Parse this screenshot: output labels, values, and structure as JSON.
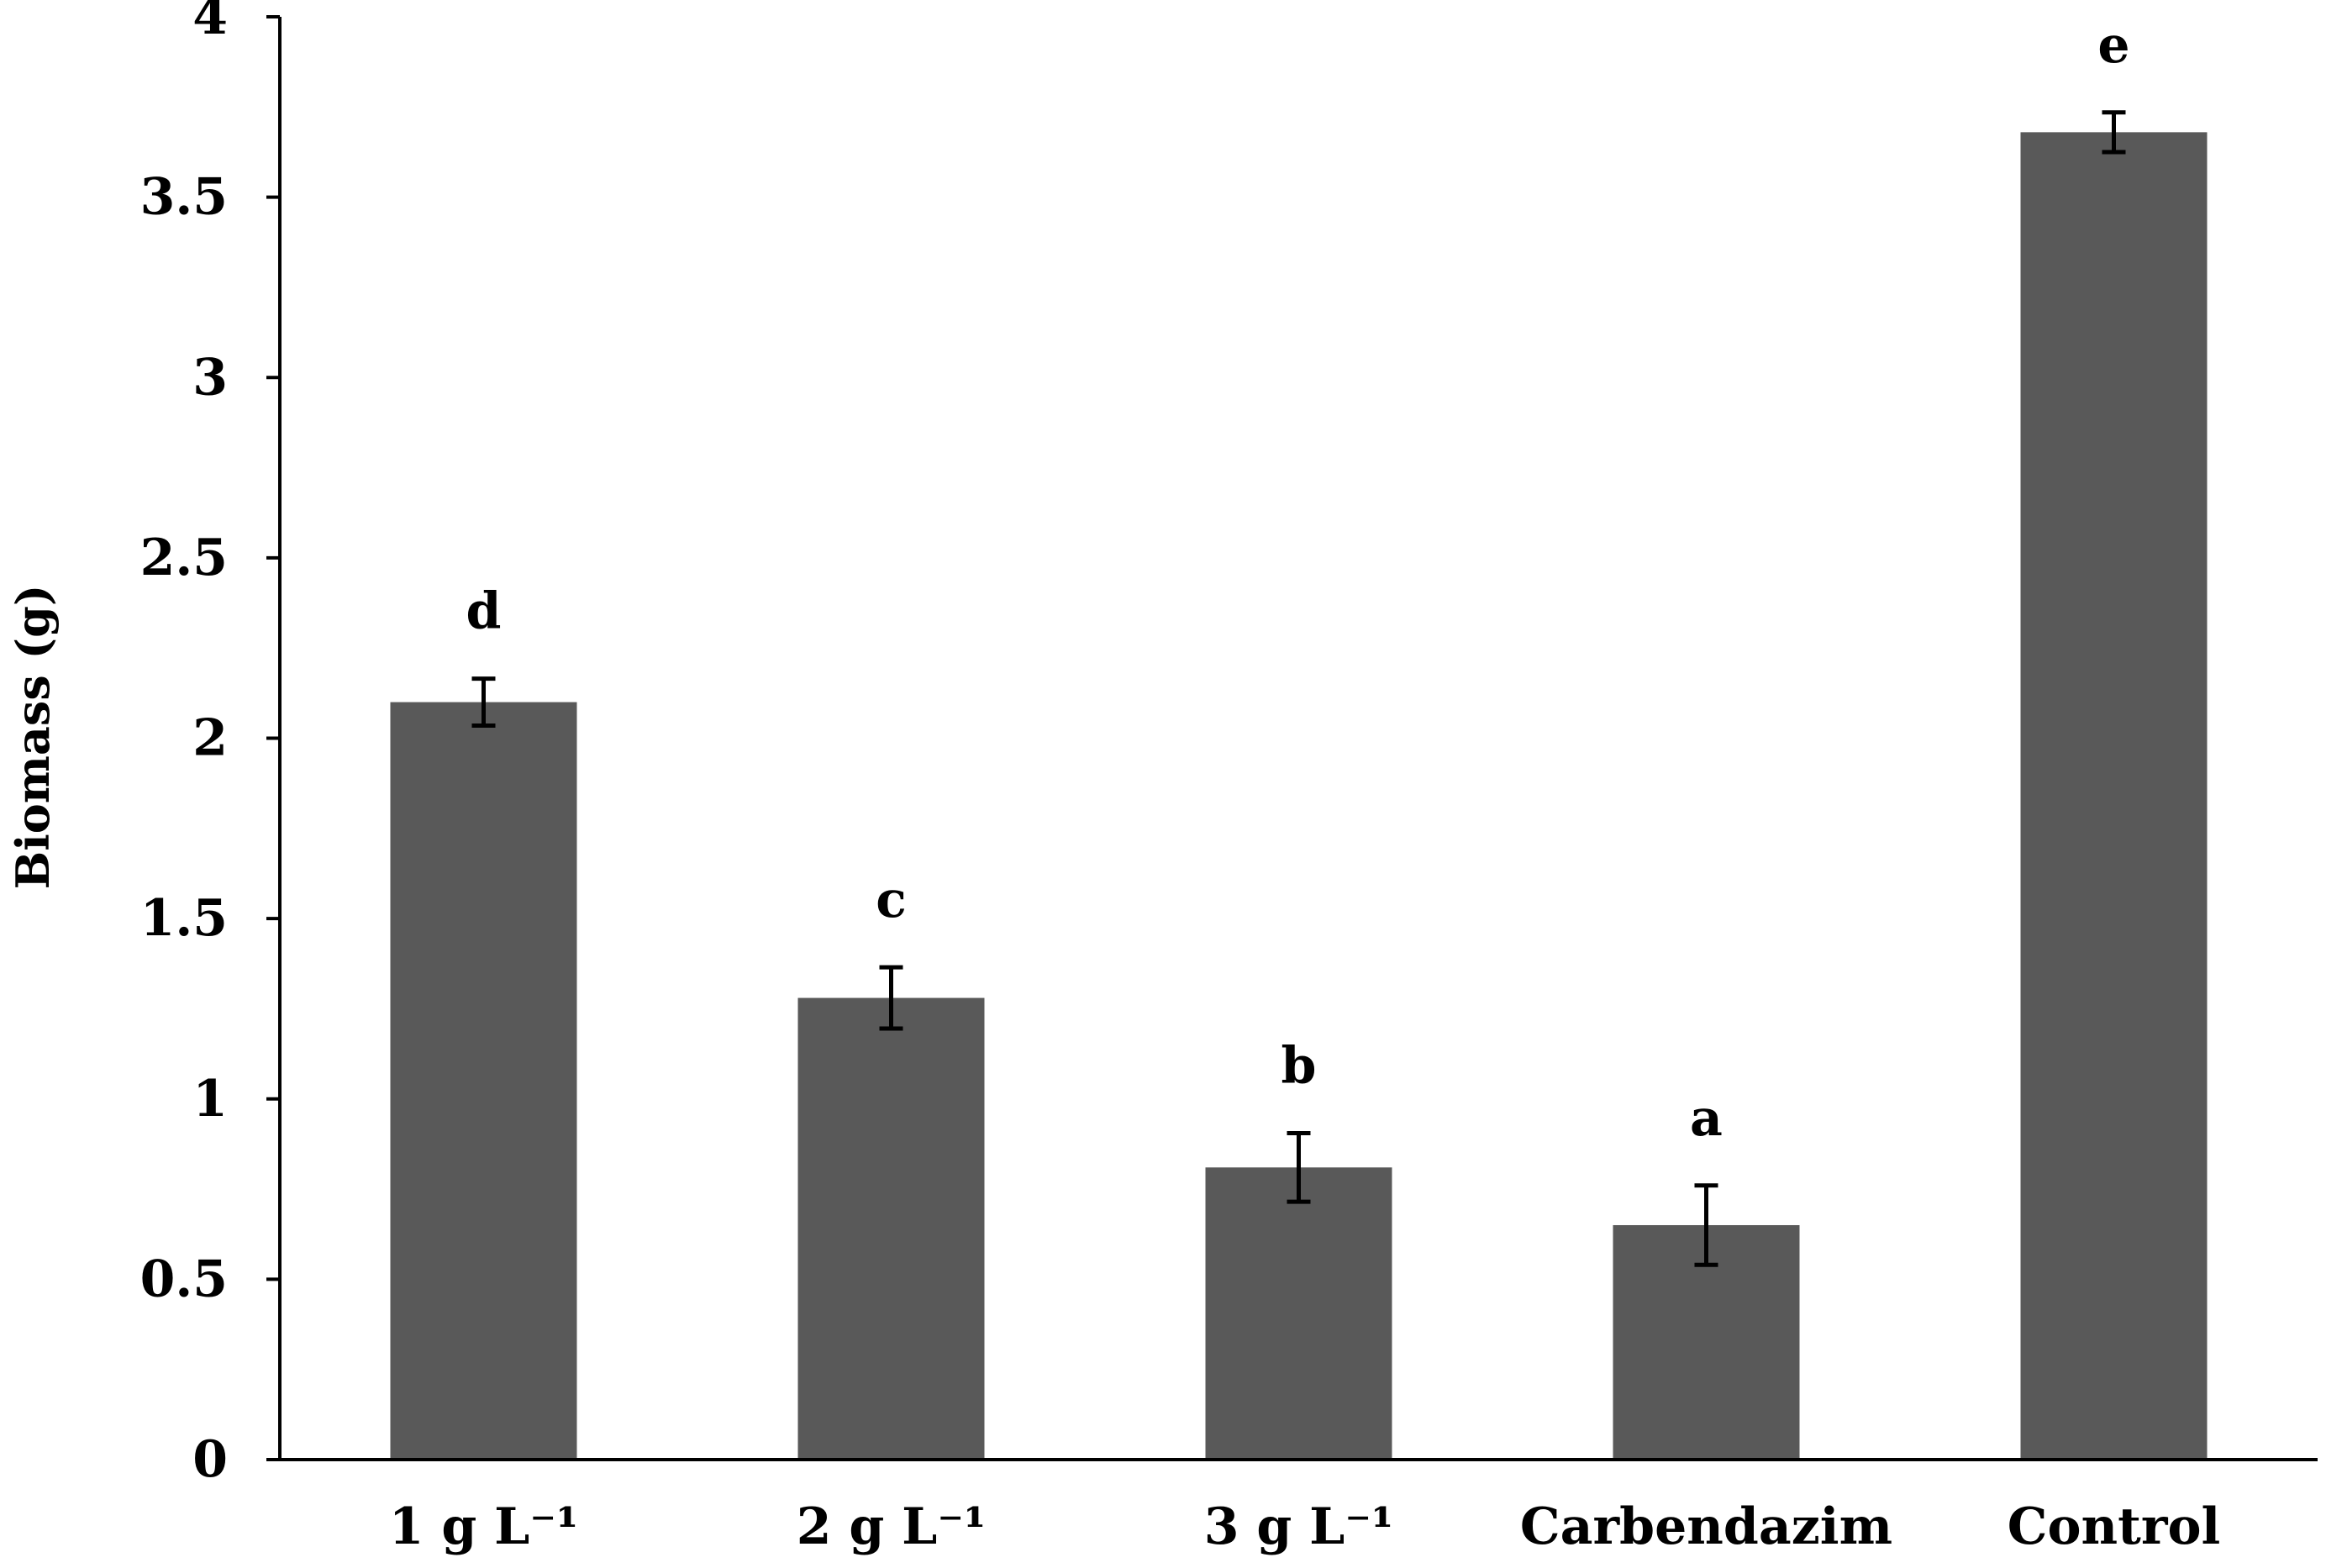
{
  "chart_data": {
    "type": "bar",
    "title": "",
    "xlabel": "",
    "ylabel": "Biomass (g)",
    "ylim": [
      0,
      4
    ],
    "yticks": [
      "0",
      "0.5",
      "1",
      "1.5",
      "2",
      "2.5",
      "3",
      "3.5",
      "4"
    ],
    "categories": [
      "1 g L⁻¹",
      "2 g L⁻¹",
      "3 g L⁻¹",
      "Carbendazim",
      "Control"
    ],
    "values": [
      2.1,
      1.28,
      0.81,
      0.65,
      3.68
    ],
    "errors": [
      0.065,
      0.085,
      0.095,
      0.11,
      0.055
    ],
    "significance_letters": [
      "d",
      "c",
      "b",
      "a",
      "e"
    ],
    "bar_color": "#595959",
    "grid": false
  }
}
